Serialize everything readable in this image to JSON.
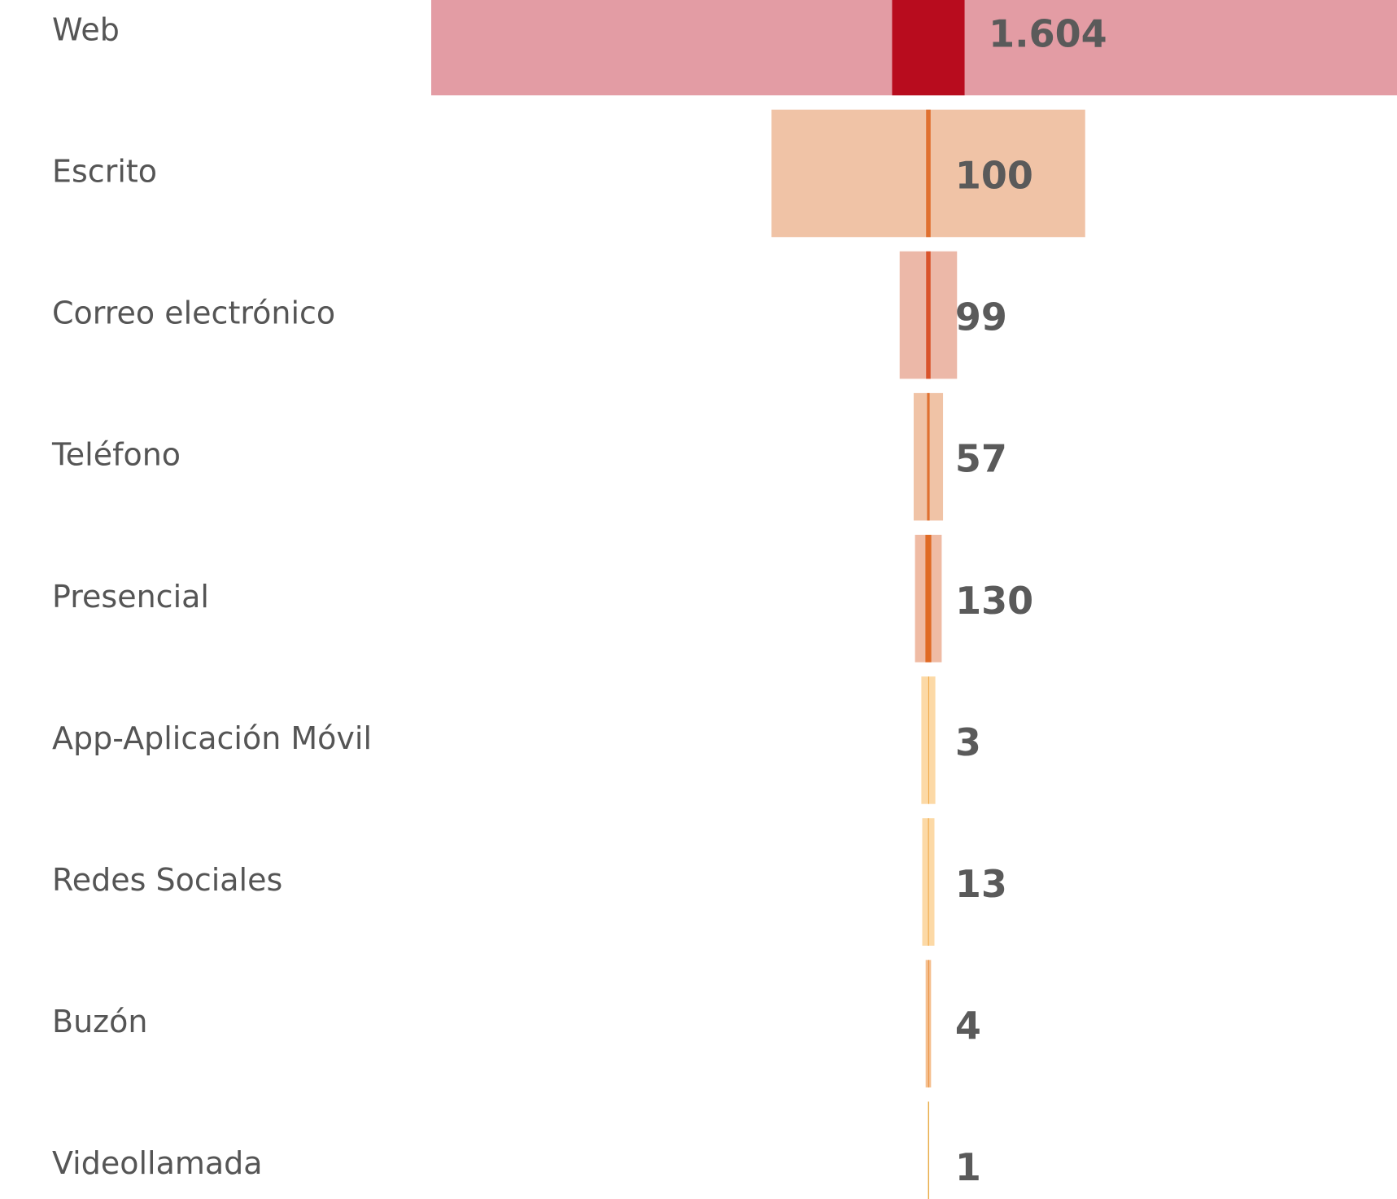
{
  "chart_data": {
    "type": "funnel",
    "categories": [
      "Web",
      "Escrito",
      "Correo electrónico",
      "Teléfono",
      "Presencial",
      "App-Aplicación Móvil",
      "Redes Sociales",
      "Buzón",
      "Videollamada"
    ],
    "xlim": [
      -11000,
      11000
    ],
    "series": [
      {
        "colors": [
          "#e39ca4",
          "#f0c3a6",
          "#ecb8a8",
          "#f0c3a6",
          "#efbba4",
          "#fcd9a6",
          "#fcd9a6",
          "#f5c090",
          "#f0c070"
        ],
        "values": [
          22000,
          6940,
          1270,
          650,
          590,
          310,
          270,
          120,
          20
        ]
      },
      {
        "colors": [
          "#b80c1e",
          "#e0702f",
          "#d9532b",
          "#e0702f",
          "#e06a25",
          "#f0a640",
          "#f0a640",
          "#e89040",
          "#e8a840"
        ],
        "values": [
          1604,
          100,
          99,
          57,
          130,
          3,
          13,
          4,
          1
        ],
        "value_labels": [
          "1.604",
          "100",
          "99",
          "57",
          "130",
          "3",
          "13",
          "4",
          "1"
        ]
      }
    ]
  }
}
